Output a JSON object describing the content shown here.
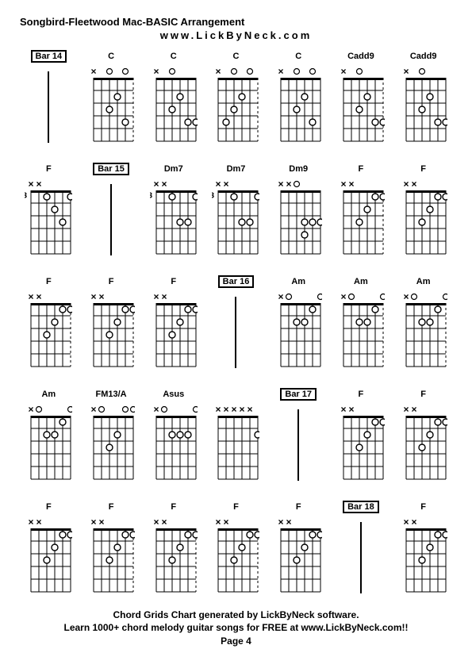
{
  "header": {
    "title": "Songbird-Fleetwood Mac-BASIC Arrangement",
    "subtitle": "www.LickByNeck.com"
  },
  "footer": {
    "line1": "Chord Grids Chart generated by LickByNeck software.",
    "line2": "Learn 1000+ chord melody guitar songs for FREE at www.LickByNeck.com!!",
    "page": "Page 4"
  },
  "diagram_style": {
    "strings": 6,
    "frets": 5,
    "width": 50,
    "height": 80,
    "grid_color": "#000000",
    "dot_radius": 4,
    "dot_fill": "#ffffff",
    "dot_stroke": "#000000",
    "x_mark": "×",
    "o_mark": "○",
    "mark_fontsize": 10
  },
  "cells": [
    {
      "type": "bar",
      "label": "Bar 14"
    },
    {
      "type": "chord",
      "label": "C",
      "fret_label": "",
      "top": [
        "x",
        "",
        "o",
        "",
        "o",
        ""
      ],
      "dots": [
        [
          3,
          2
        ],
        [
          2,
          3
        ],
        [
          4,
          4
        ]
      ],
      "dashed_right": true
    },
    {
      "type": "chord",
      "label": "C",
      "fret_label": "",
      "top": [
        "x",
        "",
        "o",
        "",
        "",
        ""
      ],
      "dots": [
        [
          3,
          2
        ],
        [
          2,
          3
        ],
        [
          4,
          4
        ],
        [
          5,
          4
        ]
      ]
    },
    {
      "type": "chord",
      "label": "C",
      "fret_label": "",
      "top": [
        "x",
        "",
        "o",
        "",
        "o",
        ""
      ],
      "dots": [
        [
          3,
          2
        ],
        [
          2,
          3
        ],
        [
          1,
          4
        ]
      ],
      "dashed_right": true
    },
    {
      "type": "chord",
      "label": "C",
      "fret_label": "",
      "top": [
        "x",
        "",
        "o",
        "",
        "o",
        ""
      ],
      "dots": [
        [
          3,
          2
        ],
        [
          2,
          3
        ],
        [
          4,
          4
        ]
      ]
    },
    {
      "type": "chord",
      "label": "Cadd9",
      "fret_label": "",
      "top": [
        "x",
        "",
        "o",
        "",
        "",
        ""
      ],
      "dots": [
        [
          3,
          2
        ],
        [
          2,
          3
        ],
        [
          4,
          4
        ],
        [
          5,
          4
        ]
      ],
      "dashed_right": true
    },
    {
      "type": "chord",
      "label": "Cadd9",
      "fret_label": "",
      "top": [
        "x",
        "",
        "o",
        "",
        "",
        ""
      ],
      "dots": [
        [
          3,
          2
        ],
        [
          2,
          3
        ],
        [
          4,
          4
        ],
        [
          5,
          4
        ]
      ]
    },
    {
      "type": "chord",
      "label": "F",
      "fret_label": "3",
      "top": [
        "x",
        "x",
        "",
        "",
        "",
        ""
      ],
      "dots": [
        [
          2,
          1
        ],
        [
          5,
          1
        ],
        [
          3,
          2
        ],
        [
          4,
          3
        ]
      ]
    },
    {
      "type": "bar",
      "label": "Bar 15"
    },
    {
      "type": "chord",
      "label": "Dm7",
      "fret_label": "3",
      "top": [
        "x",
        "x",
        "",
        "",
        "",
        ""
      ],
      "dots": [
        [
          2,
          1
        ],
        [
          5,
          1
        ],
        [
          3,
          3
        ],
        [
          4,
          3
        ]
      ]
    },
    {
      "type": "chord",
      "label": "Dm7",
      "fret_label": "3",
      "top": [
        "x",
        "x",
        "",
        "",
        "",
        ""
      ],
      "dots": [
        [
          2,
          1
        ],
        [
          5,
          1
        ],
        [
          3,
          3
        ],
        [
          4,
          3
        ]
      ]
    },
    {
      "type": "chord",
      "label": "Dm9",
      "fret_label": "",
      "top": [
        "x",
        "x",
        "o",
        "",
        "",
        ""
      ],
      "dots": [
        [
          3,
          3
        ],
        [
          4,
          3
        ],
        [
          5,
          3
        ],
        [
          3,
          4
        ]
      ]
    },
    {
      "type": "chord",
      "label": "F",
      "fret_label": "",
      "top": [
        "x",
        "x",
        "",
        "",
        "",
        ""
      ],
      "dots": [
        [
          4,
          1
        ],
        [
          5,
          1
        ],
        [
          3,
          2
        ],
        [
          2,
          3
        ]
      ],
      "dashed_right": true
    },
    {
      "type": "chord",
      "label": "F",
      "fret_label": "",
      "top": [
        "x",
        "x",
        "",
        "",
        "",
        ""
      ],
      "dots": [
        [
          4,
          1
        ],
        [
          5,
          1
        ],
        [
          3,
          2
        ],
        [
          2,
          3
        ]
      ]
    },
    {
      "type": "chord",
      "label": "F",
      "fret_label": "",
      "top": [
        "x",
        "x",
        "",
        "",
        "",
        ""
      ],
      "dots": [
        [
          4,
          1
        ],
        [
          5,
          1
        ],
        [
          3,
          2
        ],
        [
          2,
          3
        ]
      ],
      "dashed_right": true
    },
    {
      "type": "chord",
      "label": "F",
      "fret_label": "",
      "top": [
        "x",
        "x",
        "",
        "",
        "",
        ""
      ],
      "dots": [
        [
          4,
          1
        ],
        [
          5,
          1
        ],
        [
          3,
          2
        ],
        [
          2,
          3
        ]
      ],
      "dashed_right": true
    },
    {
      "type": "chord",
      "label": "F",
      "fret_label": "",
      "top": [
        "x",
        "x",
        "",
        "",
        "",
        ""
      ],
      "dots": [
        [
          4,
          1
        ],
        [
          5,
          1
        ],
        [
          3,
          2
        ],
        [
          2,
          3
        ]
      ]
    },
    {
      "type": "bar",
      "label": "Bar 16"
    },
    {
      "type": "chord",
      "label": "Am",
      "fret_label": "",
      "top": [
        "x",
        "o",
        "",
        "",
        "",
        "o"
      ],
      "dots": [
        [
          4,
          1
        ],
        [
          2,
          2
        ],
        [
          3,
          2
        ]
      ]
    },
    {
      "type": "chord",
      "label": "Am",
      "fret_label": "",
      "top": [
        "x",
        "o",
        "",
        "",
        "",
        "o"
      ],
      "dots": [
        [
          4,
          1
        ],
        [
          2,
          2
        ],
        [
          3,
          2
        ]
      ],
      "dashed_right": true
    },
    {
      "type": "chord",
      "label": "Am",
      "fret_label": "",
      "top": [
        "x",
        "o",
        "",
        "",
        "",
        "o"
      ],
      "dots": [
        [
          4,
          1
        ],
        [
          2,
          2
        ],
        [
          3,
          2
        ]
      ],
      "dashed_right": true
    },
    {
      "type": "chord",
      "label": "Am",
      "fret_label": "",
      "top": [
        "x",
        "o",
        "",
        "",
        "",
        "o"
      ],
      "dots": [
        [
          4,
          1
        ],
        [
          2,
          2
        ],
        [
          3,
          2
        ]
      ]
    },
    {
      "type": "chord",
      "label": "FM13/A",
      "fret_label": "",
      "top": [
        "x",
        "o",
        "",
        "",
        "o",
        "o"
      ],
      "dots": [
        [
          3,
          2
        ],
        [
          2,
          3
        ]
      ]
    },
    {
      "type": "chord",
      "label": "Asus",
      "fret_label": "",
      "top": [
        "x",
        "o",
        "",
        "",
        "",
        "o"
      ],
      "dots": [
        [
          2,
          2
        ],
        [
          3,
          2
        ],
        [
          4,
          2
        ]
      ]
    },
    {
      "type": "chord",
      "label": "",
      "fret_label": "",
      "top": [
        "x",
        "x",
        "x",
        "x",
        "x",
        ""
      ],
      "dots": [
        [
          5,
          2
        ]
      ]
    },
    {
      "type": "bar",
      "label": "Bar 17"
    },
    {
      "type": "chord",
      "label": "F",
      "fret_label": "",
      "top": [
        "x",
        "x",
        "",
        "",
        "",
        ""
      ],
      "dots": [
        [
          4,
          1
        ],
        [
          5,
          1
        ],
        [
          3,
          2
        ],
        [
          2,
          3
        ]
      ]
    },
    {
      "type": "chord",
      "label": "F",
      "fret_label": "",
      "top": [
        "x",
        "x",
        "",
        "",
        "",
        ""
      ],
      "dots": [
        [
          4,
          1
        ],
        [
          5,
          1
        ],
        [
          3,
          2
        ],
        [
          2,
          3
        ]
      ]
    },
    {
      "type": "chord",
      "label": "F",
      "fret_label": "",
      "top": [
        "x",
        "x",
        "",
        "",
        "",
        ""
      ],
      "dots": [
        [
          4,
          1
        ],
        [
          5,
          1
        ],
        [
          3,
          2
        ],
        [
          2,
          3
        ]
      ]
    },
    {
      "type": "chord",
      "label": "F",
      "fret_label": "",
      "top": [
        "x",
        "x",
        "",
        "",
        "",
        ""
      ],
      "dots": [
        [
          4,
          1
        ],
        [
          5,
          1
        ],
        [
          3,
          2
        ],
        [
          2,
          3
        ]
      ],
      "dashed_right": true
    },
    {
      "type": "chord",
      "label": "F",
      "fret_label": "",
      "top": [
        "x",
        "x",
        "",
        "",
        "",
        ""
      ],
      "dots": [
        [
          4,
          1
        ],
        [
          5,
          1
        ],
        [
          3,
          2
        ],
        [
          2,
          3
        ]
      ],
      "dashed_right": true
    },
    {
      "type": "chord",
      "label": "F",
      "fret_label": "",
      "top": [
        "x",
        "x",
        "",
        "",
        "",
        ""
      ],
      "dots": [
        [
          4,
          1
        ],
        [
          5,
          1
        ],
        [
          3,
          2
        ],
        [
          2,
          3
        ]
      ],
      "dashed_right": true
    },
    {
      "type": "chord",
      "label": "F",
      "fret_label": "",
      "top": [
        "x",
        "x",
        "",
        "",
        "",
        ""
      ],
      "dots": [
        [
          4,
          1
        ],
        [
          5,
          1
        ],
        [
          3,
          2
        ],
        [
          2,
          3
        ]
      ]
    },
    {
      "type": "bar",
      "label": "Bar 18"
    },
    {
      "type": "chord",
      "label": "F",
      "fret_label": "",
      "top": [
        "x",
        "x",
        "",
        "",
        "",
        ""
      ],
      "dots": [
        [
          4,
          1
        ],
        [
          5,
          1
        ],
        [
          3,
          2
        ],
        [
          2,
          3
        ]
      ]
    }
  ]
}
